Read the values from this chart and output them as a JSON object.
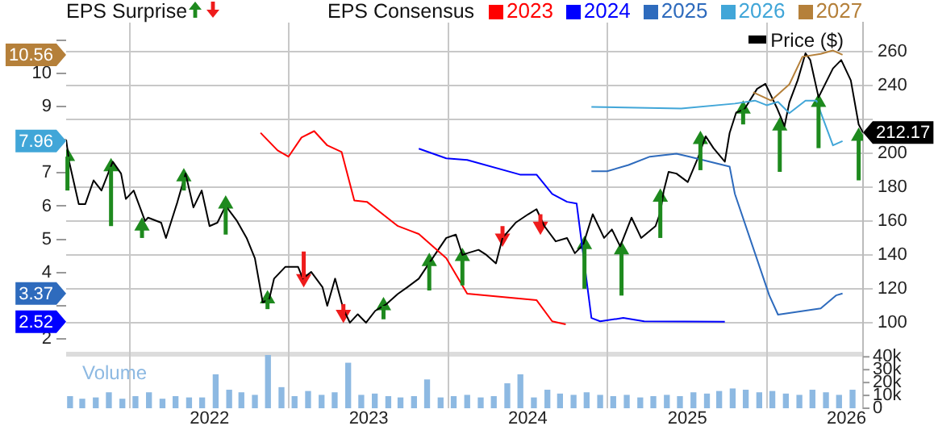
{
  "chart_data": {
    "type": "line",
    "annotations": [
      "EPS Surprise",
      "EPS Consensus",
      "10.56",
      "7.96",
      "3.37",
      "2.52"
    ],
    "xlim": [
      "2021-02-06",
      "2026-02-08"
    ],
    "xticks": [
      "2022",
      "2023",
      "2024",
      "2025",
      "2026"
    ],
    "ylim": [
      -0.09,
      11.53
    ],
    "yticks": [
      2,
      {
        "value": 3,
        "label": null
      },
      4,
      5,
      6,
      7,
      {
        "value": 8,
        "label": null
      },
      9,
      10,
      {
        "value": 11,
        "label": null
      }
    ],
    "y2lim": [
      49.5,
      277.1
    ],
    "y2ticks": [
      100,
      120,
      140,
      160,
      180,
      200,
      {
        "value": 220,
        "label": null
      },
      240,
      260
    ],
    "y3lim": [
      0,
      300000
    ],
    "y3ticks": [
      0,
      {
        "value": 10000,
        "label": "10k"
      },
      {
        "value": 20000,
        "label": "20k"
      },
      {
        "value": 30000,
        "label": "30k"
      },
      {
        "value": 40000,
        "label": "40k"
      }
    ],
    "grid": true,
    "legend": "top right",
    "series": [
      {
        "name": "2023",
        "color": "#ff0000",
        "axis": "y",
        "marker": "none",
        "x": [
          "2022-04-28",
          "2022-06-06",
          "2022-07-01",
          "2022-07-31",
          "2022-08-29",
          "2022-09-28",
          "2022-10-31",
          "2022-11-29",
          "2022-12-28",
          "2023-03-09",
          "2023-04-26",
          "2023-06-28",
          "2023-08-15",
          "2024-01-21",
          "2024-02-26",
          "2024-03-28"
        ],
        "values": [
          8.21,
          7.68,
          7.49,
          8.07,
          8.26,
          7.83,
          7.63,
          6.17,
          6.13,
          5.4,
          5.16,
          4.43,
          3.36,
          3.17,
          2.53,
          2.44
        ]
      },
      {
        "name": "2024",
        "color": "#0000ff",
        "axis": "y",
        "marker": "none",
        "x": [
          "2023-04-26",
          "2023-06-28",
          "2023-08-15",
          "2023-12-14",
          "2024-01-21",
          "2024-02-26",
          "2024-03-31",
          "2024-04-22",
          "2024-05-26",
          "2024-06-15",
          "2024-08-07",
          "2024-09-24",
          "2025-03-28"
        ],
        "values": [
          7.73,
          7.44,
          7.39,
          6.95,
          6.95,
          6.37,
          6.13,
          6.08,
          2.63,
          2.53,
          2.63,
          2.53,
          2.52
        ]
      },
      {
        "name": "2025",
        "color": "#2e6bbd",
        "axis": "y",
        "marker": "none",
        "x": [
          "2024-05-26",
          "2024-07-01",
          "2024-08-19",
          "2024-10-07",
          "2024-12-07",
          "2025-01-06",
          "2025-04-08",
          "2025-04-20",
          "2025-07-08",
          "2025-07-28",
          "2025-11-03",
          "2025-12-08",
          "2025-12-23"
        ],
        "values": [
          7.05,
          7.05,
          7.24,
          7.49,
          7.58,
          7.49,
          7.19,
          6.37,
          3.31,
          2.73,
          2.92,
          3.31,
          3.37
        ]
      },
      {
        "name": "2026",
        "color": "#41a6d8",
        "axis": "y",
        "marker": "none",
        "x": [
          "2024-05-26",
          "2024-12-18",
          "2025-04-20",
          "2025-06-05",
          "2025-07-02",
          "2025-07-28",
          "2025-08-23",
          "2025-09-29",
          "2025-10-24",
          "2025-12-01",
          "2025-12-23"
        ],
        "values": [
          8.99,
          8.94,
          9.09,
          9.18,
          9.04,
          9.14,
          8.8,
          9.18,
          9.18,
          7.83,
          7.96
        ]
      },
      {
        "name": "2027",
        "color": "#b5803a",
        "axis": "y",
        "marker": "none",
        "x": [
          "2025-06-01",
          "2025-07-12",
          "2025-08-23",
          "2025-09-22",
          "2025-11-03",
          "2025-12-01",
          "2025-12-23"
        ],
        "values": [
          9.43,
          9.18,
          9.67,
          10.5,
          10.59,
          10.69,
          10.56
        ]
      },
      {
        "name": "Price ($)",
        "color": "#000000",
        "axis": "y2",
        "marker": "none",
        "x": [
          "2021-02-06",
          "2021-02-13",
          "2021-03-07",
          "2021-03-22",
          "2021-04-10",
          "2021-04-28",
          "2021-05-24",
          "2021-06-12",
          "2021-06-23",
          "2021-07-11",
          "2021-08-06",
          "2021-08-13",
          "2021-09-12",
          "2021-09-23",
          "2021-10-19",
          "2021-11-07",
          "2021-11-25",
          "2021-12-14",
          "2022-01-01",
          "2022-01-19",
          "2022-02-07",
          "2022-03-05",
          "2022-03-27",
          "2022-04-15",
          "2022-05-03",
          "2022-05-18",
          "2022-05-29",
          "2022-06-24",
          "2022-07-23",
          "2022-08-03",
          "2022-08-22",
          "2022-09-17",
          "2022-09-28",
          "2022-10-16",
          "2022-11-04",
          "2022-11-19",
          "2022-12-07",
          "2022-12-26",
          "2023-01-16",
          "2023-02-11",
          "2023-03-09",
          "2023-03-31",
          "2023-04-26",
          "2023-05-22",
          "2023-06-28",
          "2023-07-20",
          "2023-08-04",
          "2023-08-15",
          "2023-09-10",
          "2023-09-28",
          "2023-10-20",
          "2023-11-04",
          "2023-12-04",
          "2024-01-02",
          "2024-01-21",
          "2024-02-08",
          "2024-03-05",
          "2024-03-31",
          "2024-04-18",
          "2024-05-07",
          "2024-05-29",
          "2024-06-24",
          "2024-07-12",
          "2024-07-31",
          "2024-08-26",
          "2024-09-17",
          "2024-10-20",
          "2024-10-31",
          "2024-11-08",
          "2024-11-19",
          "2024-12-07",
          "2025-01-02",
          "2025-01-25",
          "2025-02-12",
          "2025-03-02",
          "2025-03-28",
          "2025-04-08",
          "2025-04-23",
          "2025-05-12",
          "2025-06-10",
          "2025-06-29",
          "2025-07-25",
          "2025-08-12",
          "2025-08-23",
          "2025-09-11",
          "2025-09-29",
          "2025-10-10",
          "2025-10-29",
          "2025-12-01",
          "2025-12-20",
          "2026-01-11",
          "2026-01-29",
          "2026-02-08"
        ],
        "values": [
          208,
          195,
          170,
          170,
          184,
          178,
          195,
          188,
          173,
          178,
          160,
          162,
          159,
          150,
          171,
          188,
          168,
          178,
          157,
          159,
          169,
          160,
          150,
          138,
          112,
          114,
          126,
          133,
          133,
          126,
          130,
          121,
          110,
          126,
          108,
          100,
          105,
          100,
          107,
          111,
          117,
          121,
          126,
          136,
          150,
          152,
          140,
          141,
          143,
          140,
          135,
          150,
          159,
          164,
          167,
          157,
          148,
          150,
          141,
          146,
          164,
          150,
          155,
          145,
          162,
          150,
          157,
          165,
          178,
          189,
          188,
          183,
          197,
          210,
          203,
          195,
          212,
          224,
          226,
          238,
          241,
          227,
          216,
          230,
          243,
          259,
          255,
          233,
          250,
          255,
          243,
          217,
          212.17
        ],
        "value_labels": [
          null,
          null,
          null,
          null,
          null,
          null,
          null,
          null,
          null,
          null,
          null,
          null,
          null,
          null,
          null,
          null,
          null,
          null,
          null,
          null,
          null,
          null,
          null,
          null,
          null,
          null,
          null,
          null,
          null,
          null,
          null,
          null,
          null,
          null,
          null,
          null,
          null,
          null,
          null,
          null,
          null,
          null,
          null,
          null,
          null,
          null,
          null,
          null,
          null,
          null,
          null,
          null,
          null,
          null,
          null,
          null,
          null,
          null,
          null,
          null,
          null,
          null,
          null,
          null,
          null,
          null,
          null,
          null,
          null,
          null,
          null,
          null,
          null,
          null,
          null,
          null,
          null,
          null,
          null,
          null,
          null,
          null,
          null,
          null,
          null,
          null,
          null,
          null,
          null,
          null,
          null,
          null,
          "212.17"
        ]
      },
      {
        "type": "scatter",
        "color": "#1e8a1e",
        "axis": "y2",
        "marker": "triangle",
        "x": [
          "2021-02-09",
          "2021-05-20",
          "2021-07-30",
          "2021-11-03",
          "2022-02-07",
          "2022-05-14",
          "2023-02-04",
          "2023-05-20",
          "2023-08-04",
          "2024-05-10",
          "2024-08-03",
          "2024-10-31",
          "2025-01-31",
          "2025-05-09",
          "2025-08-01",
          "2025-10-29",
          "2026-01-29"
        ],
        "values": [
          198,
          192,
          157,
          186,
          170,
          114,
          110,
          136,
          139,
          146,
          143,
          174,
          208,
          226,
          216,
          230,
          210
        ],
        "errors": [
          [
            178,
            198
          ],
          [
            157,
            192
          ],
          [
            150,
            157
          ],
          [
            178,
            186
          ],
          [
            152,
            170
          ],
          [
            108,
            114
          ],
          [
            102,
            110
          ],
          [
            119,
            136
          ],
          [
            122,
            139
          ],
          [
            120,
            146
          ],
          [
            116,
            143
          ],
          [
            150,
            174
          ],
          [
            190,
            208
          ],
          [
            217,
            226
          ],
          [
            189,
            216
          ],
          [
            203,
            230
          ],
          [
            184,
            210
          ]
        ]
      },
      {
        "type": "scatter",
        "color": "#ee1c1c",
        "axis": "y2",
        "marker": "triangle",
        "x": [
          "2022-08-05",
          "2022-11-04",
          "2023-11-04",
          "2024-01-30"
        ],
        "values": [
          126,
          105,
          150,
          157
        ],
        "errors": [
          [
            126,
            142
          ],
          [
            105,
            111
          ],
          [
            150,
            157
          ],
          [
            157,
            164
          ]
        ]
      },
      {
        "name": "Volume",
        "type": "bar",
        "color": "#8db9e2",
        "axis": "y3",
        "x": [
          "2021-02-15",
          "2021-03-15",
          "2021-04-15",
          "2021-05-15",
          "2021-06-15",
          "2021-07-15",
          "2021-08-15",
          "2021-09-15",
          "2021-10-15",
          "2021-11-15",
          "2021-12-15",
          "2022-01-15",
          "2022-02-15",
          "2022-03-15",
          "2022-04-15",
          "2022-05-15",
          "2022-06-15",
          "2022-07-15",
          "2022-08-15",
          "2022-09-15",
          "2022-10-15",
          "2022-11-15",
          "2022-12-15",
          "2023-01-15",
          "2023-02-15",
          "2023-03-15",
          "2023-04-15",
          "2023-05-15",
          "2023-06-15",
          "2023-07-15",
          "2023-08-15",
          "2023-09-15",
          "2023-10-15",
          "2023-11-15",
          "2023-12-15",
          "2024-01-15",
          "2024-02-15",
          "2024-03-15",
          "2024-04-15",
          "2024-05-15",
          "2024-06-15",
          "2024-07-15",
          "2024-08-15",
          "2024-09-15",
          "2024-10-15",
          "2024-11-15",
          "2024-12-15",
          "2025-01-15",
          "2025-02-15",
          "2025-03-15",
          "2025-04-15",
          "2025-05-15",
          "2025-06-15",
          "2025-07-15",
          "2025-08-15",
          "2025-09-15",
          "2025-10-15",
          "2025-11-15",
          "2025-12-15",
          "2026-01-15"
        ],
        "values": [
          9000,
          7000,
          8000,
          12000,
          7000,
          9000,
          12000,
          7000,
          9000,
          8000,
          8000,
          26000,
          14000,
          12000,
          10000,
          41000,
          16000,
          9000,
          13000,
          10000,
          12000,
          35000,
          10000,
          11000,
          9000,
          8000,
          9000,
          22000,
          8000,
          9000,
          10000,
          8000,
          9000,
          19000,
          26000,
          8000,
          14000,
          11000,
          10000,
          12000,
          10000,
          9000,
          10000,
          8000,
          9000,
          10000,
          9000,
          12000,
          11000,
          13000,
          15000,
          14000,
          12000,
          13000,
          11000,
          10000,
          14000,
          12000,
          10000,
          14000
        ]
      }
    ]
  }
}
